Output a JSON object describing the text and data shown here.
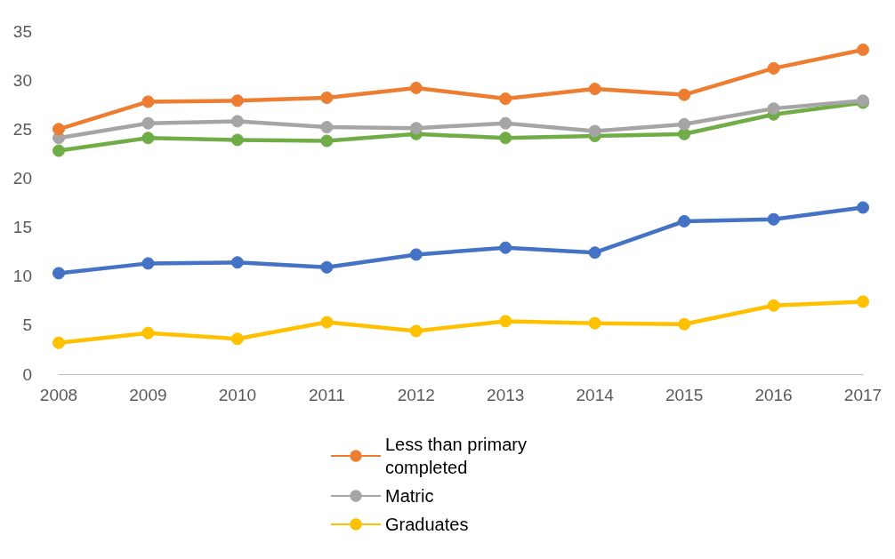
{
  "chart_data": {
    "type": "line",
    "categories": [
      "2008",
      "2009",
      "2010",
      "2011",
      "2012",
      "2013",
      "2014",
      "2015",
      "2016",
      "2017"
    ],
    "series": [
      {
        "name": "Less than primary completed",
        "color": "#ed7d31",
        "values": [
          25.0,
          27.8,
          27.9,
          28.2,
          29.2,
          28.1,
          29.1,
          28.5,
          31.2,
          33.1
        ]
      },
      {
        "name": "Matric",
        "color": "#a5a5a5",
        "values": [
          24.1,
          25.6,
          25.8,
          25.2,
          25.1,
          25.6,
          24.8,
          25.5,
          27.1,
          27.9
        ]
      },
      {
        "color": "#70ad47",
        "values": [
          22.8,
          24.1,
          23.9,
          23.8,
          24.5,
          24.1,
          24.3,
          24.5,
          26.5,
          27.7
        ]
      },
      {
        "color": "#4472c4",
        "values": [
          10.3,
          11.3,
          11.4,
          10.9,
          12.2,
          12.9,
          12.4,
          15.6,
          15.8,
          17.0
        ]
      },
      {
        "name": "Graduates",
        "color": "#ffc000",
        "values": [
          3.2,
          4.2,
          3.6,
          5.3,
          4.4,
          5.4,
          5.2,
          5.1,
          7.0,
          7.4
        ]
      }
    ],
    "ylim": [
      0,
      35
    ],
    "yticks": [
      0,
      5,
      10,
      15,
      20,
      25,
      30,
      35
    ],
    "grid": false,
    "legend": "bottom",
    "marker": "circle",
    "line_style": "solid"
  }
}
